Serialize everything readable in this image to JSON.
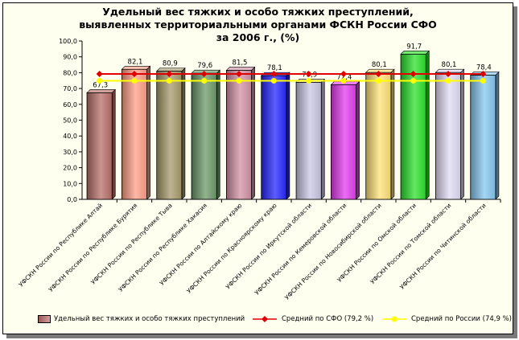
{
  "chart_data": {
    "type": "bar",
    "title_lines": [
      "Удельный вес тяжких и особо тяжких преступлений,",
      "выявленных территориальными органами ФСКН России СФО",
      "за 2006 г., (%)"
    ],
    "categories": [
      "УФСКН России по Республике Алтай",
      "УФСКН России по Республике Бурятия",
      "УФСКН России по Республике Тыва",
      "УФСКН России по Республике Хакасия",
      "УФСКН России по Алтайскому краю",
      "УФСКН России по Красноярскому краю",
      "УФСКН России по Иркутской области",
      "УФСКН России по Кемеровской области",
      "УФСКН России по Новосибирской области",
      "УФСКН России по Омской области",
      "УФСКН России по Томской области",
      "УФСКН России по Читинской области"
    ],
    "series": [
      {
        "name": "Удельный вес тяжких и особо тяжких преступлений",
        "type": "bar",
        "values": [
          67.3,
          82.1,
          80.9,
          79.6,
          81.5,
          78.1,
          73.9,
          72.4,
          80.1,
          91.7,
          80.1,
          78.4
        ],
        "value_labels": [
          "67,3",
          "82,1",
          "80,9",
          "79,6",
          "81,5",
          "78,1",
          "73,9",
          "72,4",
          "80,1",
          "91,7",
          "80,1",
          "78,4"
        ],
        "colors": [
          "#b8706a",
          "#ff9f88",
          "#a89b6c",
          "#6d9a6a",
          "#d492a6",
          "#2727ff",
          "#cac8e4",
          "#e43cf0",
          "#ffe27a",
          "#2de22d",
          "#e2dcf6",
          "#86c8f0"
        ]
      },
      {
        "name": "Средний по СФО (79,2 %)",
        "type": "line",
        "value": 79.2,
        "color": "#e00000"
      },
      {
        "name": "Средний по России (74,9 %)",
        "type": "line",
        "value": 74.9,
        "color": "#ffff00"
      }
    ],
    "y_ticks": [
      "0,0",
      "10,0",
      "20,0",
      "30,0",
      "40,0",
      "50,0",
      "60,0",
      "70,0",
      "80,0",
      "90,0",
      "100,0"
    ],
    "ylim": [
      0,
      100
    ],
    "grid": false,
    "legend_position": "bottom"
  }
}
